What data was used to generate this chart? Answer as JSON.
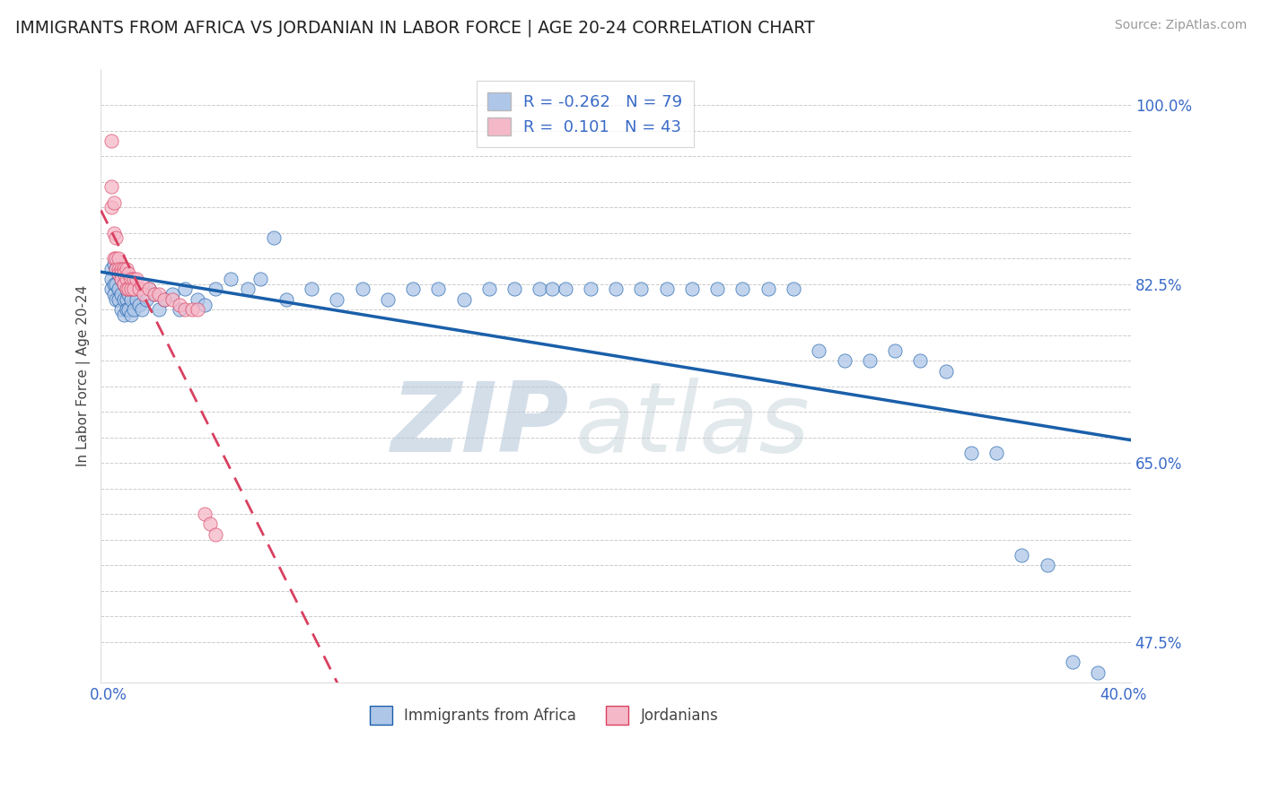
{
  "title": "IMMIGRANTS FROM AFRICA VS JORDANIAN IN LABOR FORCE | AGE 20-24 CORRELATION CHART",
  "source": "Source: ZipAtlas.com",
  "ylabel": "In Labor Force | Age 20-24",
  "xlim": [
    -0.003,
    0.403
  ],
  "ylim": [
    0.435,
    1.035
  ],
  "blue_color": "#aec6e8",
  "pink_color": "#f5b8c8",
  "blue_line_color": "#1a5faa",
  "pink_line_color": "#d94060",
  "legend_R_blue": "-0.262",
  "legend_N_blue": "79",
  "legend_R_pink": "0.101",
  "legend_N_pink": "43",
  "blue_scatter_x": [
    0.001,
    0.001,
    0.001,
    0.002,
    0.002,
    0.002,
    0.003,
    0.003,
    0.003,
    0.004,
    0.004,
    0.004,
    0.005,
    0.005,
    0.005,
    0.006,
    0.006,
    0.006,
    0.007,
    0.007,
    0.007,
    0.008,
    0.008,
    0.009,
    0.009,
    0.01,
    0.01,
    0.011,
    0.012,
    0.013,
    0.015,
    0.016,
    0.018,
    0.02,
    0.022,
    0.025,
    0.028,
    0.03,
    0.035,
    0.038,
    0.042,
    0.048,
    0.055,
    0.06,
    0.065,
    0.07,
    0.08,
    0.09,
    0.1,
    0.11,
    0.12,
    0.13,
    0.14,
    0.15,
    0.16,
    0.17,
    0.175,
    0.18,
    0.19,
    0.2,
    0.21,
    0.22,
    0.23,
    0.24,
    0.25,
    0.26,
    0.27,
    0.28,
    0.29,
    0.3,
    0.31,
    0.32,
    0.33,
    0.34,
    0.35,
    0.36,
    0.37,
    0.38,
    0.39
  ],
  "blue_scatter_y": [
    0.84,
    0.83,
    0.82,
    0.845,
    0.825,
    0.815,
    0.84,
    0.825,
    0.81,
    0.835,
    0.82,
    0.81,
    0.83,
    0.815,
    0.8,
    0.825,
    0.81,
    0.795,
    0.82,
    0.81,
    0.8,
    0.815,
    0.8,
    0.81,
    0.795,
    0.82,
    0.8,
    0.81,
    0.805,
    0.8,
    0.81,
    0.82,
    0.815,
    0.8,
    0.81,
    0.815,
    0.8,
    0.82,
    0.81,
    0.805,
    0.82,
    0.83,
    0.82,
    0.83,
    0.87,
    0.81,
    0.82,
    0.81,
    0.82,
    0.81,
    0.82,
    0.82,
    0.81,
    0.82,
    0.82,
    0.82,
    0.82,
    0.82,
    0.82,
    0.82,
    0.82,
    0.82,
    0.82,
    0.82,
    0.82,
    0.82,
    0.82,
    0.76,
    0.75,
    0.75,
    0.76,
    0.75,
    0.74,
    0.66,
    0.66,
    0.56,
    0.55,
    0.455,
    0.445
  ],
  "pink_scatter_x": [
    0.001,
    0.001,
    0.001,
    0.002,
    0.002,
    0.002,
    0.003,
    0.003,
    0.003,
    0.004,
    0.004,
    0.004,
    0.005,
    0.005,
    0.005,
    0.006,
    0.006,
    0.006,
    0.007,
    0.007,
    0.007,
    0.008,
    0.008,
    0.009,
    0.009,
    0.01,
    0.01,
    0.011,
    0.012,
    0.013,
    0.014,
    0.016,
    0.018,
    0.02,
    0.022,
    0.025,
    0.028,
    0.03,
    0.033,
    0.035,
    0.038,
    0.04,
    0.042
  ],
  "pink_scatter_y": [
    0.965,
    0.92,
    0.9,
    0.905,
    0.875,
    0.85,
    0.87,
    0.85,
    0.84,
    0.85,
    0.84,
    0.835,
    0.84,
    0.835,
    0.83,
    0.84,
    0.835,
    0.825,
    0.84,
    0.83,
    0.82,
    0.835,
    0.82,
    0.83,
    0.82,
    0.83,
    0.82,
    0.83,
    0.82,
    0.825,
    0.815,
    0.82,
    0.815,
    0.815,
    0.81,
    0.81,
    0.805,
    0.8,
    0.8,
    0.8,
    0.6,
    0.59,
    0.58
  ]
}
